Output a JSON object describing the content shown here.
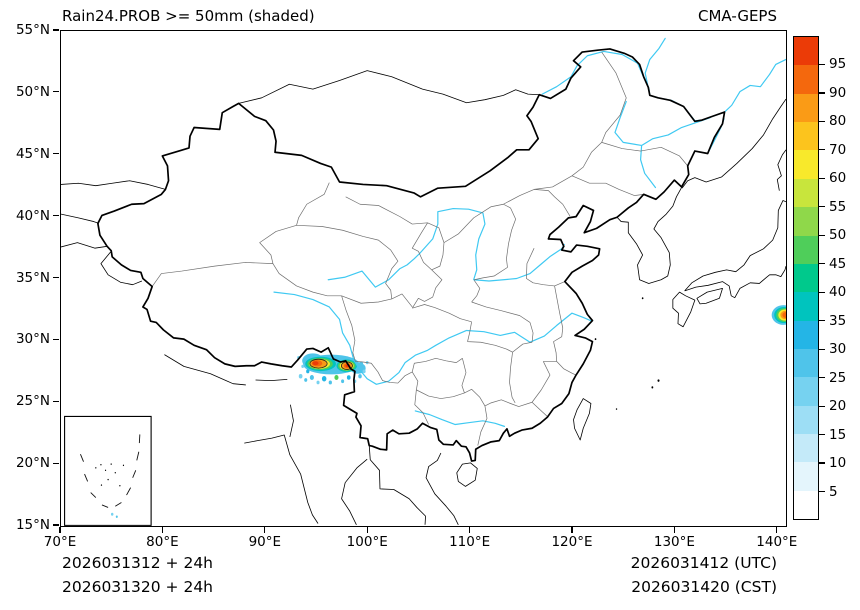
{
  "title": "Rain24.PROB >= 50mm (shaded)",
  "model": "CMA-GEPS",
  "axes": {
    "x_ticks": [
      "70°E",
      "80°E",
      "90°E",
      "100°E",
      "110°E",
      "120°E",
      "130°E",
      "140°E"
    ],
    "y_ticks": [
      "55°N",
      "50°N",
      "45°N",
      "40°N",
      "35°N",
      "30°N",
      "25°N",
      "20°N",
      "15°N"
    ]
  },
  "colorbar": {
    "labels_top_to_bottom": [
      "95",
      "90",
      "80",
      "70",
      "60",
      "55",
      "50",
      "45",
      "40",
      "35",
      "30",
      "25",
      "20",
      "15",
      "10",
      "5"
    ],
    "colors_top_to_bottom": [
      "#EB3B07",
      "#F4680D",
      "#FA9B16",
      "#FCC41D",
      "#F8E92B",
      "#C8E53C",
      "#8FD84A",
      "#4FCE5A",
      "#00C98C",
      "#00C4BE",
      "#24B5E6",
      "#4FC4EA",
      "#76D2F0",
      "#9DDEF5",
      "#C4EAF9",
      "#E4F5FC",
      "#FFFFFF"
    ]
  },
  "footer": {
    "init_utc": "2026031312 + 24h",
    "init_cst": "2026031320 + 24h",
    "valid_utc": "2026031412 (UTC)",
    "valid_cst": "2026031420 (CST)"
  },
  "shading": {
    "ellipses": [
      [
        96.4,
        28.05,
        2.75,
        0.8,
        "#4FC4EA"
      ],
      [
        94.6,
        28.35,
        1.05,
        0.6,
        "#4FC4EA"
      ],
      [
        99.0,
        27.75,
        0.75,
        0.45,
        "#4FC4EA"
      ],
      [
        95.35,
        28.1,
        1.5,
        0.58,
        "#00C4BE"
      ],
      [
        97.9,
        27.95,
        1.0,
        0.5,
        "#00C4BE"
      ],
      [
        95.3,
        28.1,
        1.25,
        0.48,
        "#4FCE5A"
      ],
      [
        97.9,
        27.95,
        0.85,
        0.42,
        "#4FCE5A"
      ],
      [
        95.25,
        28.1,
        1.02,
        0.4,
        "#F8E92B"
      ],
      [
        97.9,
        27.95,
        0.68,
        0.36,
        "#F8E92B"
      ],
      [
        95.15,
        28.12,
        0.8,
        0.33,
        "#FA9B16"
      ],
      [
        97.92,
        27.95,
        0.5,
        0.28,
        "#FA9B16"
      ],
      [
        95.0,
        28.15,
        0.52,
        0.25,
        "#F4680D"
      ],
      [
        97.95,
        27.95,
        0.33,
        0.2,
        "#F4680D"
      ],
      [
        94.85,
        28.15,
        0.3,
        0.16,
        "#EB3B07"
      ],
      [
        97.97,
        27.95,
        0.18,
        0.12,
        "#EB3B07"
      ],
      [
        140.55,
        32.05,
        1.15,
        0.8,
        "#4FC4EA"
      ],
      [
        140.6,
        32.05,
        0.95,
        0.65,
        "#00C4BE"
      ],
      [
        140.65,
        32.05,
        0.8,
        0.55,
        "#4FCE5A"
      ],
      [
        140.7,
        32.05,
        0.65,
        0.45,
        "#F8E92B"
      ],
      [
        140.75,
        32.05,
        0.5,
        0.34,
        "#FA9B16"
      ],
      [
        140.8,
        32.05,
        0.35,
        0.24,
        "#F4680D"
      ]
    ],
    "contours": [
      [
        95.15,
        28.12,
        0.84,
        0.36
      ],
      [
        97.92,
        27.95,
        0.54,
        0.31
      ]
    ],
    "speckles": [
      [
        93.2,
        28.6,
        0.14,
        "#76D2F0"
      ],
      [
        93.4,
        27.1,
        0.18,
        "#76D2F0"
      ],
      [
        93.9,
        26.8,
        0.15,
        "#4FC4EA"
      ],
      [
        94.5,
        27.0,
        0.2,
        "#4FC4EA"
      ],
      [
        95.1,
        26.6,
        0.15,
        "#76D2F0"
      ],
      [
        95.7,
        26.9,
        0.22,
        "#24B5E6"
      ],
      [
        96.3,
        26.6,
        0.16,
        "#4FC4EA"
      ],
      [
        96.9,
        27.0,
        0.2,
        "#4FCE5A"
      ],
      [
        97.5,
        26.7,
        0.15,
        "#4FC4EA"
      ],
      [
        98.1,
        27.0,
        0.18,
        "#24B5E6"
      ],
      [
        98.7,
        26.7,
        0.14,
        "#76D2F0"
      ],
      [
        99.2,
        27.1,
        0.17,
        "#4FC4EA"
      ],
      [
        99.6,
        27.5,
        0.15,
        "#76D2F0"
      ],
      [
        94.1,
        27.5,
        0.16,
        "#24B5E6"
      ],
      [
        93.6,
        27.9,
        0.13,
        "#76D2F0"
      ],
      [
        99.9,
        28.2,
        0.13,
        "#76D2F0"
      ],
      [
        99.3,
        28.1,
        0.2,
        "#4FC4EA"
      ]
    ]
  }
}
